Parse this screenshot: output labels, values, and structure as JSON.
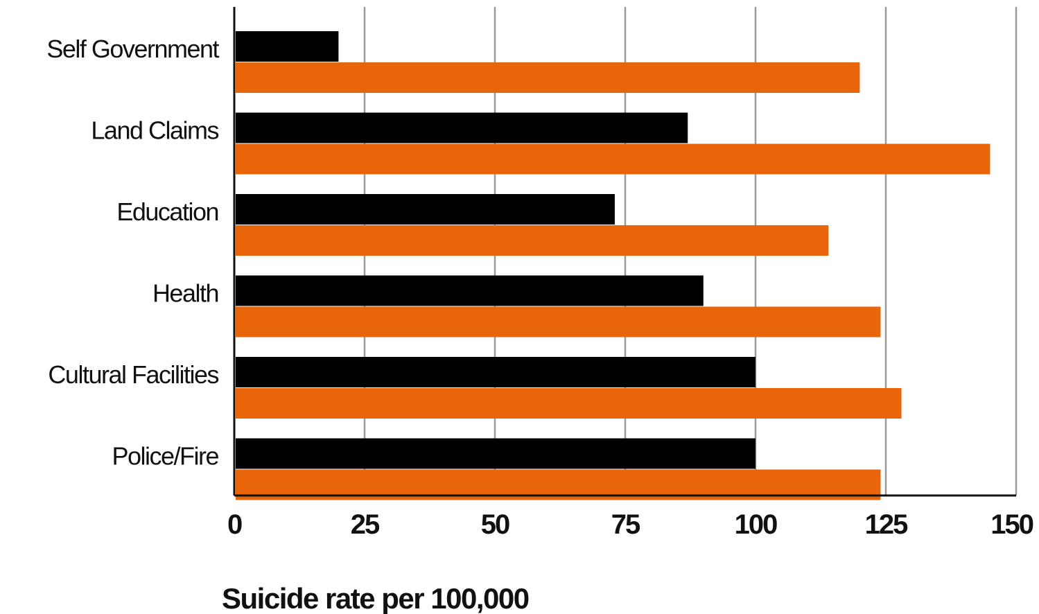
{
  "chart_data": {
    "type": "bar",
    "orientation": "horizontal",
    "categories": [
      "Self Government",
      "Land Claims",
      "Education",
      "Health",
      "Cultural Facilities",
      "Police/Fire"
    ],
    "series": [
      {
        "values": [
          20,
          87,
          73,
          90,
          100,
          100
        ],
        "color": "#000000"
      },
      {
        "values": [
          120,
          145,
          114,
          124,
          128,
          124
        ],
        "color": "#e8650a"
      }
    ],
    "xlabel": "Suicide rate per 100,000",
    "ylabel": "",
    "title": "",
    "xlim": [
      0,
      150
    ],
    "xticks": [
      0,
      25,
      50,
      75,
      100,
      125,
      150
    ],
    "grid": "vertical",
    "legend": "none"
  }
}
